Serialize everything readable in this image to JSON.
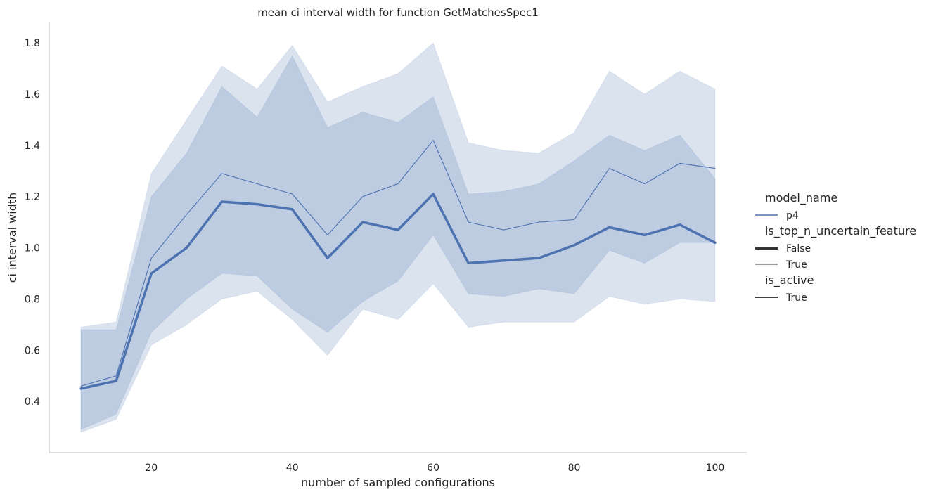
{
  "chart_data": {
    "type": "line",
    "title": "mean ci interval width for function GetMatchesSpec1",
    "xlabel": "number of sampled configurations",
    "ylabel": "ci interval width",
    "xlim": [
      5.5,
      104.5
    ],
    "ylim": [
      0.2,
      1.88
    ],
    "xticks": [
      "20",
      "40",
      "60",
      "80",
      "100"
    ],
    "yticks": [
      "0.4",
      "0.6",
      "0.8",
      "1.0",
      "1.2",
      "1.4",
      "1.6",
      "1.8"
    ],
    "grid": false,
    "legend_position": "right",
    "x": [
      10,
      15,
      20,
      25,
      30,
      35,
      40,
      45,
      50,
      55,
      60,
      65,
      70,
      75,
      80,
      85,
      90,
      95,
      100
    ],
    "series": [
      {
        "name": "False",
        "color": "#4c72b0",
        "line_weight": "thick",
        "values": [
          0.45,
          0.48,
          0.9,
          1.0,
          1.18,
          1.17,
          1.15,
          0.96,
          1.1,
          1.07,
          1.21,
          0.94,
          0.95,
          0.96,
          1.01,
          1.08,
          1.05,
          1.09,
          1.02
        ],
        "ci_lower": [
          0.29,
          0.35,
          0.67,
          0.8,
          0.9,
          0.89,
          0.76,
          0.67,
          0.79,
          0.87,
          1.05,
          0.82,
          0.81,
          0.84,
          0.82,
          0.99,
          0.94,
          1.02,
          1.02
        ],
        "ci_upper": [
          0.68,
          0.68,
          1.2,
          1.37,
          1.63,
          1.51,
          1.75,
          1.47,
          1.53,
          1.49,
          1.59,
          1.21,
          1.22,
          1.25,
          1.34,
          1.44,
          1.38,
          1.44,
          1.27
        ]
      },
      {
        "name": "True",
        "color": "#4c72b0",
        "line_weight": "thin",
        "values": [
          0.46,
          0.5,
          0.96,
          1.13,
          1.29,
          1.25,
          1.21,
          1.05,
          1.2,
          1.25,
          1.42,
          1.1,
          1.07,
          1.1,
          1.11,
          1.31,
          1.25,
          1.33,
          1.31
        ],
        "ci_lower": [
          0.28,
          0.33,
          0.62,
          0.7,
          0.8,
          0.83,
          0.72,
          0.58,
          0.76,
          0.72,
          0.86,
          0.69,
          0.71,
          0.71,
          0.71,
          0.81,
          0.78,
          0.8,
          0.79
        ],
        "ci_upper": [
          0.69,
          0.71,
          1.29,
          1.5,
          1.71,
          1.62,
          1.79,
          1.57,
          1.63,
          1.68,
          1.8,
          1.41,
          1.38,
          1.37,
          1.45,
          1.69,
          1.6,
          1.69,
          1.62
        ]
      }
    ],
    "legend": {
      "groups": [
        {
          "title": "model_name",
          "entries": [
            {
              "label": "p4",
              "style": "color"
            }
          ]
        },
        {
          "title": "is_top_n_uncertain_feature",
          "entries": [
            {
              "label": "False",
              "style": "thick"
            },
            {
              "label": "True",
              "style": "thin"
            }
          ]
        },
        {
          "title": "is_active",
          "entries": [
            {
              "label": "True",
              "style": "solid"
            }
          ]
        }
      ]
    }
  }
}
